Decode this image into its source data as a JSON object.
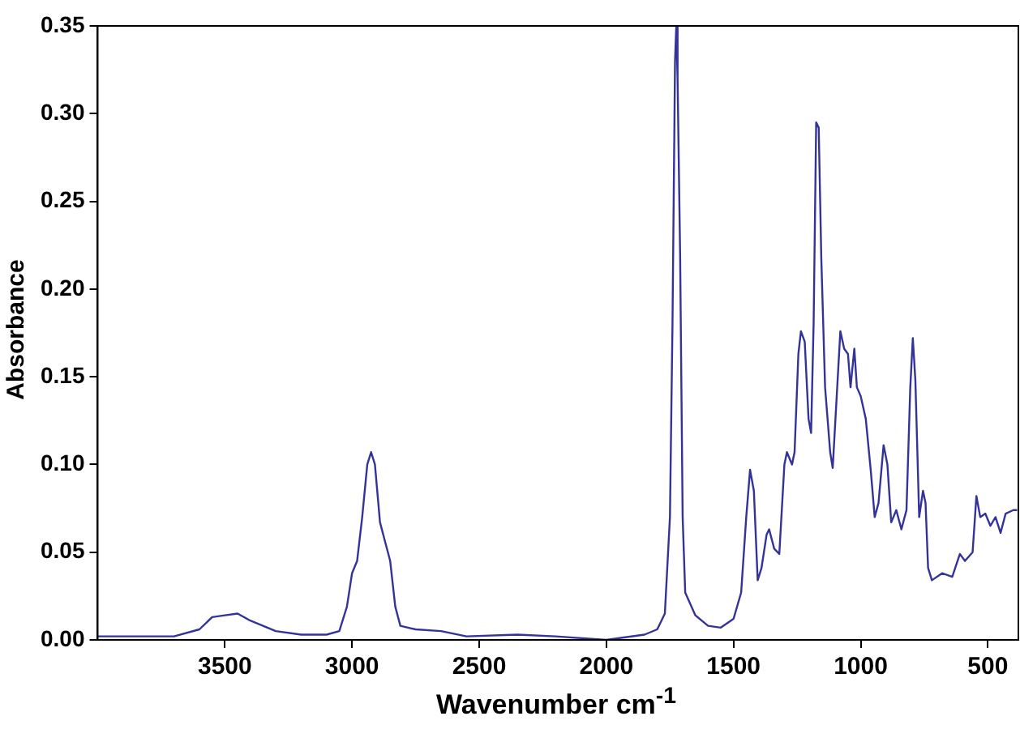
{
  "chart_data": {
    "type": "line",
    "xlabel": "Wavenumber cm$^{-1}$",
    "ylabel": "Absorbance",
    "xlim": [
      4000,
      380
    ],
    "xticks": [
      3500,
      3000,
      2500,
      2000,
      1500,
      1000,
      500
    ],
    "ylim": [
      0,
      0.35
    ],
    "yticks": [
      {
        "value": 0,
        "label": "0.00"
      },
      {
        "value": 0.05,
        "label": "0.05"
      },
      {
        "value": 0.1,
        "label": "0.10"
      },
      {
        "value": 0.15,
        "label": "0.15"
      },
      {
        "value": 0.2,
        "label": "0.20"
      },
      {
        "value": 0.25,
        "label": "0.25"
      },
      {
        "value": 0.3,
        "label": "0.30"
      },
      {
        "value": 0.35,
        "label": "0.35"
      }
    ],
    "grid": false,
    "legend": false,
    "marker": "none",
    "line_style": "solid",
    "series": [
      {
        "color": "#333399",
        "x": [
          4000,
          3700,
          3600,
          3550,
          3500,
          3450,
          3400,
          3300,
          3200,
          3100,
          3050,
          3020,
          3000,
          2980,
          2960,
          2940,
          2925,
          2910,
          2890,
          2870,
          2850,
          2830,
          2810,
          2750,
          2650,
          2550,
          2350,
          2200,
          2000,
          1850,
          1800,
          1770,
          1750,
          1740,
          1730,
          1725,
          1720,
          1710,
          1700,
          1690,
          1650,
          1600,
          1550,
          1500,
          1470,
          1450,
          1435,
          1420,
          1405,
          1390,
          1370,
          1360,
          1340,
          1320,
          1300,
          1290,
          1270,
          1260,
          1245,
          1235,
          1220,
          1205,
          1195,
          1185,
          1175,
          1165,
          1155,
          1140,
          1120,
          1110,
          1095,
          1080,
          1065,
          1050,
          1040,
          1025,
          1015,
          1000,
          980,
          960,
          945,
          930,
          910,
          895,
          880,
          860,
          840,
          820,
          805,
          795,
          785,
          770,
          755,
          745,
          735,
          720,
          680,
          640,
          610,
          590,
          560,
          545,
          530,
          510,
          490,
          470,
          450,
          430,
          400,
          385
        ],
        "values": [
          0.002,
          0.002,
          0.006,
          0.013,
          0.014,
          0.015,
          0.011,
          0.005,
          0.003,
          0.003,
          0.005,
          0.019,
          0.038,
          0.045,
          0.07,
          0.1,
          0.107,
          0.1,
          0.067,
          0.056,
          0.045,
          0.019,
          0.008,
          0.006,
          0.005,
          0.002,
          0.003,
          0.002,
          0,
          0.003,
          0.006,
          0.015,
          0.07,
          0.18,
          0.33,
          0.35,
          0.32,
          0.22,
          0.07,
          0.027,
          0.014,
          0.008,
          0.007,
          0.012,
          0.027,
          0.07,
          0.097,
          0.085,
          0.034,
          0.041,
          0.06,
          0.063,
          0.052,
          0.049,
          0.1,
          0.107,
          0.1,
          0.107,
          0.163,
          0.176,
          0.17,
          0.126,
          0.118,
          0.181,
          0.295,
          0.292,
          0.218,
          0.144,
          0.107,
          0.098,
          0.137,
          0.176,
          0.166,
          0.163,
          0.144,
          0.166,
          0.144,
          0.139,
          0.126,
          0.096,
          0.07,
          0.078,
          0.111,
          0.1,
          0.067,
          0.074,
          0.063,
          0.074,
          0.144,
          0.172,
          0.148,
          0.07,
          0.085,
          0.078,
          0.041,
          0.034,
          0.038,
          0.036,
          0.049,
          0.045,
          0.05,
          0.082,
          0.07,
          0.072,
          0.065,
          0.07,
          0.061,
          0.072,
          0.074,
          0.074
        ]
      }
    ]
  }
}
